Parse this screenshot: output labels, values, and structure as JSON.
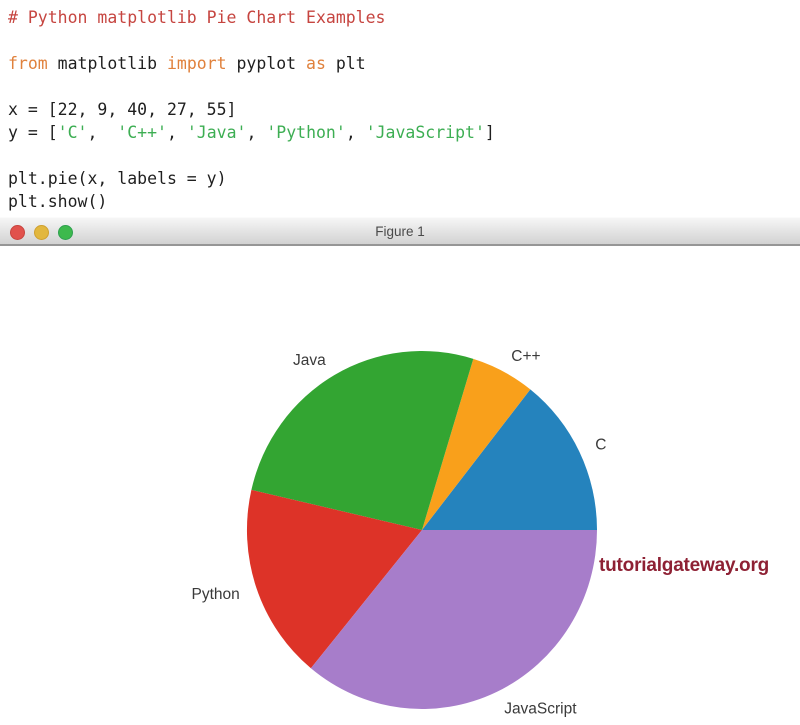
{
  "editor": {
    "lines": [
      {
        "segments": [
          {
            "t": "# Python matplotlib Pie Chart Examples",
            "c": "comment"
          }
        ]
      },
      {
        "segments": []
      },
      {
        "segments": [
          {
            "t": "from ",
            "c": "keyword"
          },
          {
            "t": "matplotlib ",
            "c": "plain"
          },
          {
            "t": "import ",
            "c": "keyword"
          },
          {
            "t": "pyplot ",
            "c": "plain"
          },
          {
            "t": "as ",
            "c": "keyword"
          },
          {
            "t": "plt",
            "c": "plain"
          }
        ]
      },
      {
        "segments": []
      },
      {
        "segments": [
          {
            "t": "x = [22, 9, 40, 27, 55]",
            "c": "plain"
          }
        ]
      },
      {
        "segments": [
          {
            "t": "y = [",
            "c": "plain"
          },
          {
            "t": "'C'",
            "c": "string"
          },
          {
            "t": ",  ",
            "c": "plain"
          },
          {
            "t": "'C++'",
            "c": "string"
          },
          {
            "t": ", ",
            "c": "plain"
          },
          {
            "t": "'Java'",
            "c": "string"
          },
          {
            "t": ", ",
            "c": "plain"
          },
          {
            "t": "'Python'",
            "c": "string"
          },
          {
            "t": ", ",
            "c": "plain"
          },
          {
            "t": "'JavaScript'",
            "c": "string"
          },
          {
            "t": "]",
            "c": "plain"
          }
        ]
      },
      {
        "segments": []
      },
      {
        "segments": [
          {
            "t": "plt.pie(x, labels = y)",
            "c": "plain"
          }
        ]
      },
      {
        "segments": [
          {
            "t": "plt.show()",
            "c": "plain"
          }
        ]
      }
    ]
  },
  "window": {
    "title": "Figure 1",
    "buttons": [
      "close",
      "minimize",
      "zoom"
    ]
  },
  "chart_data": {
    "type": "pie",
    "title": "Figure 1",
    "categories": [
      "C",
      "C++",
      "Java",
      "Python",
      "JavaScript"
    ],
    "values": [
      22,
      9,
      40,
      27,
      55
    ],
    "colors": [
      "#2583bd",
      "#f9a01b",
      "#33a532",
      "#dd3328",
      "#a77dca"
    ],
    "start_angle": 0,
    "direction": "counterclockwise",
    "label_distance": 1.1,
    "legend": false,
    "label_color": "#3a3a3a"
  },
  "watermark": {
    "text": "tutorialgateway.org",
    "color": "#8e2134"
  }
}
